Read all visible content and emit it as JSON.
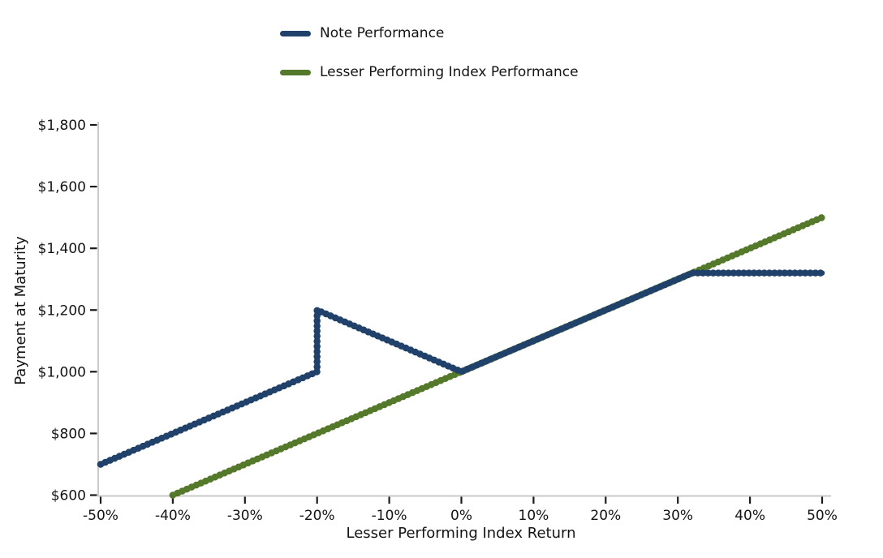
{
  "figure": {
    "background": "#ffffff"
  },
  "axes": {
    "spine_color": "#c9c9c9",
    "tick_color": "#1a1a1a",
    "text_color": "#141414"
  },
  "chart_data": {
    "type": "line",
    "title": "",
    "xlabel": "Lesser Performing Index Return",
    "ylabel": "Payment at Maturity",
    "xlim": [
      -50,
      50
    ],
    "ylim": [
      600,
      1800
    ],
    "grid": false,
    "legend_position": "top-center",
    "x_tick_unit": "percent",
    "y_tick_unit": "dollars",
    "x_ticks": [
      {
        "value": -50,
        "label": "-50%"
      },
      {
        "value": -40,
        "label": "-40%"
      },
      {
        "value": -30,
        "label": "-30%"
      },
      {
        "value": -20,
        "label": "-20%"
      },
      {
        "value": -10,
        "label": "-10%"
      },
      {
        "value": 0,
        "label": "0%"
      },
      {
        "value": 10,
        "label": "10%"
      },
      {
        "value": 20,
        "label": "20%"
      },
      {
        "value": 30,
        "label": "30%"
      },
      {
        "value": 40,
        "label": "40%"
      },
      {
        "value": 50,
        "label": "50%"
      }
    ],
    "y_ticks": [
      {
        "value": 600,
        "label": "$600"
      },
      {
        "value": 800,
        "label": "$800"
      },
      {
        "value": 1000,
        "label": "$1,000"
      },
      {
        "value": 1200,
        "label": "$1,200"
      },
      {
        "value": 1400,
        "label": "$1,400"
      },
      {
        "value": 1600,
        "label": "$1,600"
      },
      {
        "value": 1800,
        "label": "$1,800"
      }
    ],
    "series": [
      {
        "name": "Note Performance",
        "color": "#204169",
        "points": [
          [
            -50,
            700
          ],
          [
            -20,
            1000
          ],
          [
            -20,
            1200
          ],
          [
            0,
            1000
          ],
          [
            32,
            1320
          ],
          [
            50,
            1320
          ]
        ]
      },
      {
        "name": "Lesser Performing Index Performance",
        "color": "#54792b",
        "points": [
          [
            -40,
            600
          ],
          [
            50,
            1500
          ]
        ]
      }
    ]
  }
}
